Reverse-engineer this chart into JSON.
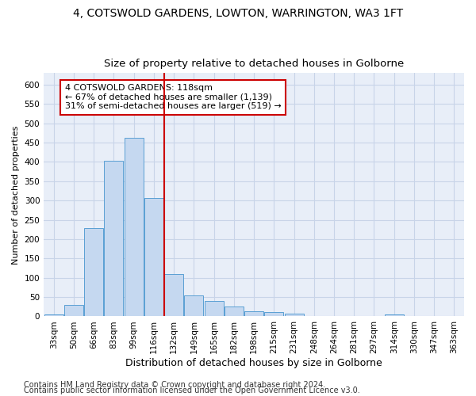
{
  "title": "4, COTSWOLD GARDENS, LOWTON, WARRINGTON, WA3 1FT",
  "subtitle": "Size of property relative to detached houses in Golborne",
  "xlabel": "Distribution of detached houses by size in Golborne",
  "ylabel": "Number of detached properties",
  "footer_line1": "Contains HM Land Registry data © Crown copyright and database right 2024.",
  "footer_line2": "Contains public sector information licensed under the Open Government Licence v3.0.",
  "annotation_line1": "4 COTSWOLD GARDENS: 118sqm",
  "annotation_line2": "← 67% of detached houses are smaller (1,139)",
  "annotation_line3": "31% of semi-detached houses are larger (519) →",
  "bar_color": "#c5d8f0",
  "bar_edge_color": "#5a9fd4",
  "vline_color": "#cc0000",
  "annotation_box_edgecolor": "#cc0000",
  "background_color": "#ffffff",
  "plot_bg_color": "#e8eef8",
  "grid_color": "#c8d4e8",
  "categories": [
    "33sqm",
    "50sqm",
    "66sqm",
    "83sqm",
    "99sqm",
    "116sqm",
    "132sqm",
    "149sqm",
    "165sqm",
    "182sqm",
    "198sqm",
    "215sqm",
    "231sqm",
    "248sqm",
    "264sqm",
    "281sqm",
    "297sqm",
    "314sqm",
    "330sqm",
    "347sqm",
    "363sqm"
  ],
  "values": [
    6,
    30,
    228,
    402,
    463,
    307,
    110,
    54,
    40,
    26,
    14,
    12,
    7,
    0,
    0,
    0,
    0,
    5,
    0,
    0,
    0
  ],
  "n_bars": 21,
  "ylim": [
    0,
    630
  ],
  "yticks": [
    0,
    50,
    100,
    150,
    200,
    250,
    300,
    350,
    400,
    450,
    500,
    550,
    600
  ],
  "vline_bar_index": 5,
  "title_fontsize": 10,
  "subtitle_fontsize": 9.5,
  "xlabel_fontsize": 9,
  "ylabel_fontsize": 8,
  "tick_fontsize": 7.5,
  "annotation_fontsize": 8,
  "footer_fontsize": 7
}
